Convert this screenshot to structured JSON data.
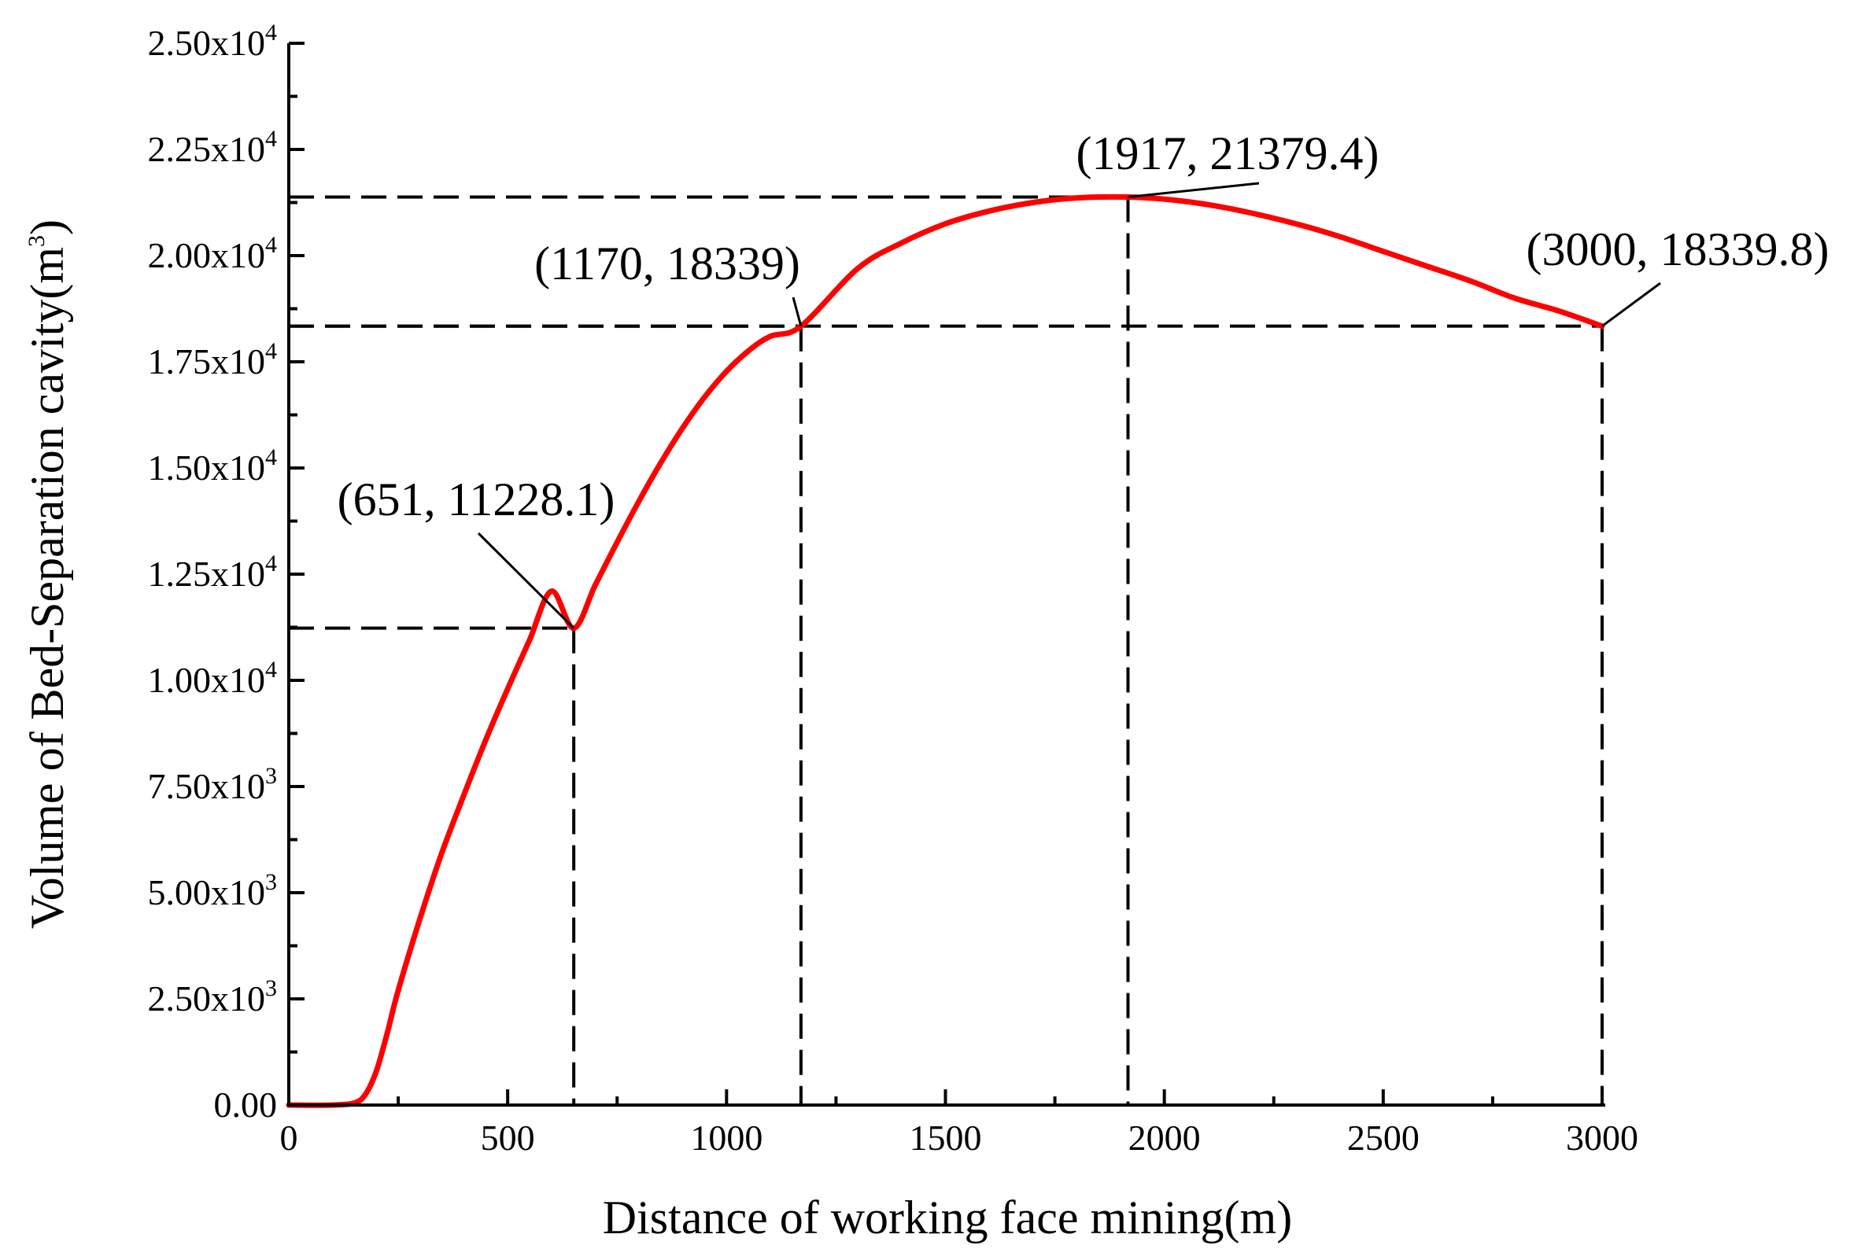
{
  "chart_data": {
    "type": "line",
    "xlabel": "Distance of working face mining(m)",
    "ylabel_prefix": "Volume of Bed-Separation cavity(m",
    "ylabel_sup": "3",
    "ylabel_suffix": ")",
    "xlim": [
      0,
      3000
    ],
    "ylim": [
      0,
      25000
    ],
    "x_ticks": [
      0,
      500,
      1000,
      1500,
      2000,
      2500,
      3000
    ],
    "x_tick_labels": [
      "0",
      "500",
      "1000",
      "1500",
      "2000",
      "2500",
      "3000"
    ],
    "y_ticks": [
      0,
      2500,
      5000,
      7500,
      10000,
      12500,
      15000,
      17500,
      20000,
      22500,
      25000
    ],
    "y_tick_labels": [
      {
        "base": "0.00",
        "exp": ""
      },
      {
        "base": "2.50x10",
        "exp": "3"
      },
      {
        "base": "5.00x10",
        "exp": "3"
      },
      {
        "base": "7.50x10",
        "exp": "3"
      },
      {
        "base": "1.00x10",
        "exp": "4"
      },
      {
        "base": "1.25x10",
        "exp": "4"
      },
      {
        "base": "1.50x10",
        "exp": "4"
      },
      {
        "base": "1.75x10",
        "exp": "4"
      },
      {
        "base": "2.00x10",
        "exp": "4"
      },
      {
        "base": "2.25x10",
        "exp": "4"
      },
      {
        "base": "2.50x10",
        "exp": "4"
      }
    ],
    "series": [
      {
        "name": "Volume of Bed-Separation cavity",
        "color": "#ff0000",
        "x": [
          0,
          100,
          150,
          175,
          200,
          225,
          250,
          300,
          350,
          400,
          450,
          500,
          550,
          600,
          651,
          700,
          750,
          800,
          850,
          900,
          950,
          1000,
          1050,
          1100,
          1170,
          1200,
          1300,
          1400,
          1500,
          1600,
          1700,
          1800,
          1917,
          2000,
          2100,
          2200,
          2300,
          2400,
          2500,
          2600,
          2700,
          2800,
          2900,
          3000
        ],
        "y": [
          0,
          0,
          50,
          250,
          800,
          1700,
          2700,
          4400,
          5950,
          7300,
          8600,
          9800,
          10950,
          12100,
          11228.1,
          12200,
          13300,
          14300,
          15200,
          16050,
          16900,
          17650,
          18300,
          18900,
          18339,
          18900,
          19700,
          20300,
          20750,
          21050,
          21250,
          21360,
          21379.4,
          21330,
          21200,
          21000,
          20750,
          20450,
          20100,
          19750,
          19400,
          19000,
          18700,
          18339.8
        ]
      }
    ],
    "annotations": [
      {
        "label": "(651, 11228.1)",
        "x": 651,
        "y": 11228.1
      },
      {
        "label": "(1170, 18339)",
        "x": 1170,
        "y": 18339
      },
      {
        "label": "(1917, 21379.4)",
        "x": 1917,
        "y": 21379.4
      },
      {
        "label": "(3000, 18339.8)",
        "x": 3000,
        "y": 18339.8
      }
    ],
    "reference_line_color": "#000000",
    "grid": false
  }
}
